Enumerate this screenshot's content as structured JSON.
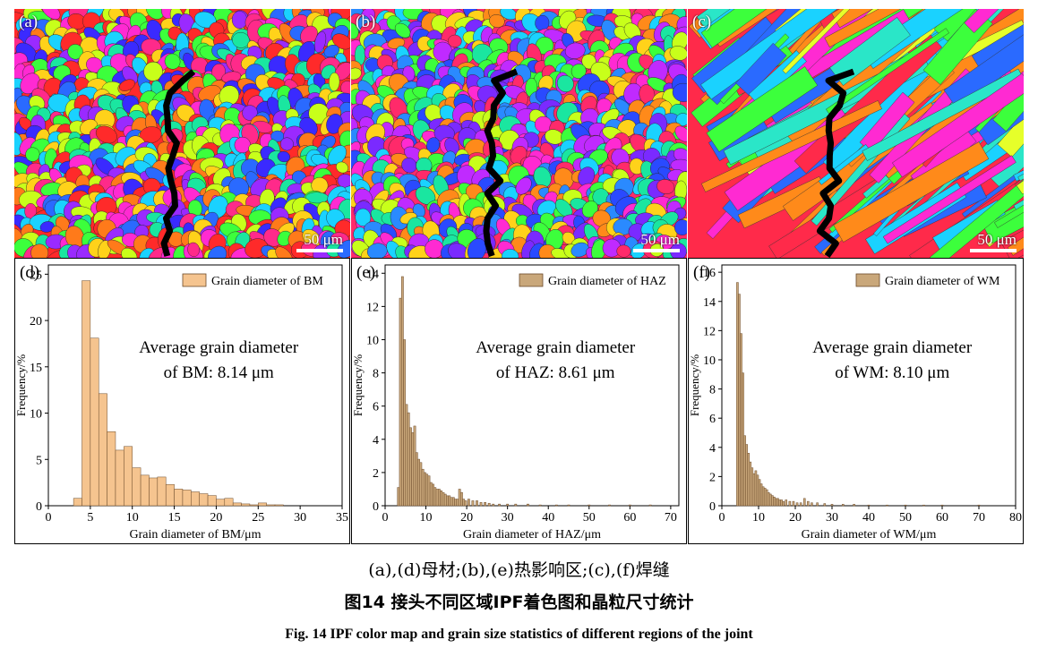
{
  "figure": {
    "maps": [
      {
        "id": "a",
        "label": "(a)",
        "scale": "50 μm",
        "palette": [
          "#ff2a2a",
          "#ff7a1a",
          "#ffd21a",
          "#c8ff1a",
          "#3cff3c",
          "#1ae6a0",
          "#1ad2ff",
          "#2a6aff",
          "#3a2aff",
          "#9a2aff",
          "#ff2ad2",
          "#ff2a8a"
        ]
      },
      {
        "id": "b",
        "label": "(b)",
        "scale": "50 μm",
        "palette": [
          "#ff2a6a",
          "#ff2ad2",
          "#c02aff",
          "#7a2aff",
          "#2a4aff",
          "#2a8aff",
          "#1ad2ff",
          "#1ae6a0",
          "#3cff3c",
          "#c8ff1a",
          "#ffd21a",
          "#ff8a1a"
        ]
      },
      {
        "id": "c",
        "label": "(c)",
        "scale": "50 μm",
        "palette": [
          "#ff2a4a",
          "#2ae6c8",
          "#3cff3c",
          "#e6ff2a",
          "#1ad2ff",
          "#ff2ad2",
          "#2a6aff",
          "#ff8a1a"
        ]
      }
    ],
    "chart_data": [
      {
        "id": "d",
        "type": "bar",
        "panel_label": "(d)",
        "legend": "Grain diameter of BM",
        "annotation": [
          "Average grain diameter",
          "of BM: 8.14 μm"
        ],
        "xlabel": "Grain diameter of BM/μm",
        "ylabel": "Frequency/%",
        "xlim": [
          0,
          35
        ],
        "ylim": [
          0,
          26
        ],
        "xticks": [
          0,
          5,
          10,
          15,
          20,
          25,
          30,
          35
        ],
        "yticks": [
          0,
          5,
          10,
          15,
          20,
          25
        ],
        "bin_width": 1,
        "x": [
          3.5,
          4.5,
          5.5,
          6.5,
          7.5,
          8.5,
          9.5,
          10.5,
          11.5,
          12.5,
          13.5,
          14.5,
          15.5,
          16.5,
          17.5,
          18.5,
          19.5,
          20.5,
          21.5,
          22.5,
          23.5,
          24.5,
          25.5,
          26.5,
          27.5
        ],
        "values": [
          0.8,
          24.3,
          18.1,
          12.1,
          8.0,
          6.0,
          6.4,
          4.1,
          3.3,
          3.0,
          3.1,
          2.3,
          1.8,
          1.7,
          1.5,
          1.3,
          1.1,
          0.7,
          0.8,
          0.3,
          0.2,
          0.1,
          0.3,
          0.1,
          0.1
        ]
      },
      {
        "id": "e",
        "type": "bar",
        "panel_label": "(e)",
        "legend": "Grain diameter of HAZ",
        "annotation": [
          "Average grain diameter",
          "of HAZ: 8.61 μm"
        ],
        "xlabel": "Grain diameter of HAZ/μm",
        "ylabel": "Frequency/%",
        "xlim": [
          0,
          72
        ],
        "ylim": [
          0,
          14.5
        ],
        "xticks": [
          0,
          10,
          20,
          30,
          40,
          50,
          60,
          70
        ],
        "yticks": [
          0,
          2,
          4,
          6,
          8,
          10,
          12,
          14
        ],
        "bin_width": 0.5,
        "x": [
          3.25,
          3.75,
          4.25,
          4.75,
          5.25,
          5.75,
          6.25,
          6.75,
          7.25,
          7.75,
          8.25,
          8.75,
          9.25,
          9.75,
          10.25,
          10.75,
          11.25,
          11.75,
          12.25,
          12.75,
          13.25,
          13.75,
          14.25,
          14.75,
          15.25,
          15.75,
          16.25,
          16.75,
          17.25,
          17.75,
          18.25,
          18.75,
          19.25,
          19.75,
          20.5,
          21.5,
          22.5,
          23.5,
          24.5,
          25.5,
          26.5,
          28,
          30,
          32,
          35,
          38,
          42,
          45,
          50,
          55,
          60,
          65
        ],
        "values": [
          1.1,
          12.5,
          13.8,
          10.0,
          6.1,
          5.6,
          4.7,
          4.4,
          4.8,
          3.2,
          2.8,
          2.6,
          2.2,
          2.0,
          1.9,
          1.8,
          1.4,
          1.3,
          1.1,
          1.0,
          1.0,
          0.9,
          0.8,
          0.7,
          0.6,
          0.6,
          0.5,
          0.5,
          0.4,
          0.4,
          1.0,
          0.8,
          0.4,
          0.3,
          0.4,
          0.3,
          0.3,
          0.2,
          0.2,
          0.15,
          0.1,
          0.1,
          0.1,
          0.1,
          0.1,
          0.05,
          0.05,
          0.05,
          0.05,
          0.05,
          0.05,
          0.05
        ]
      },
      {
        "id": "f",
        "type": "bar",
        "panel_label": "(f)",
        "legend": "Grain diameter of WM",
        "annotation": [
          "Average grain diameter",
          "of WM: 8.10 μm"
        ],
        "xlabel": "Grain diameter of WM/μm",
        "ylabel": "Frequency/%",
        "xlim": [
          0,
          80
        ],
        "ylim": [
          0,
          16.5
        ],
        "xticks": [
          0,
          10,
          20,
          30,
          40,
          50,
          60,
          70,
          80
        ],
        "yticks": [
          0,
          2,
          4,
          6,
          8,
          10,
          12,
          14,
          16
        ],
        "bin_width": 0.5,
        "x": [
          4.25,
          4.75,
          5.25,
          5.75,
          6.25,
          6.75,
          7.25,
          7.75,
          8.25,
          8.75,
          9.25,
          9.75,
          10.25,
          10.75,
          11.25,
          11.75,
          12.25,
          12.75,
          13.25,
          13.75,
          14.25,
          14.75,
          15.25,
          15.75,
          16.25,
          16.75,
          17.5,
          18.5,
          19.5,
          20.5,
          21.5,
          22.5,
          23.5,
          24.5,
          26,
          28,
          30,
          33,
          36,
          40,
          45,
          50,
          55,
          60,
          70
        ],
        "values": [
          15.3,
          14.5,
          11.8,
          9.1,
          4.8,
          4.2,
          3.6,
          3.0,
          2.6,
          2.2,
          2.4,
          2.1,
          1.8,
          1.5,
          1.3,
          1.2,
          1.1,
          0.9,
          0.8,
          0.7,
          0.6,
          0.5,
          0.5,
          0.4,
          0.4,
          0.3,
          0.4,
          0.3,
          0.3,
          0.2,
          0.2,
          0.5,
          0.3,
          0.2,
          0.2,
          0.15,
          0.1,
          0.1,
          0.1,
          0.05,
          0.05,
          0.05,
          0.05,
          0.05,
          0.05
        ]
      }
    ],
    "caption_sub": "(a),(d)母材;(b),(e)热影响区;(c),(f)焊缝",
    "caption_cn": "图14   接头不同区域IPF着色图和晶粒尺寸统计",
    "caption_en": "Fig. 14   IPF color map and grain size statistics of different regions of the joint",
    "colors": {
      "bar_bd": "#f5c48f",
      "bar_haz": "#c9a77a",
      "bar_edge": "#6b4a2a"
    }
  }
}
